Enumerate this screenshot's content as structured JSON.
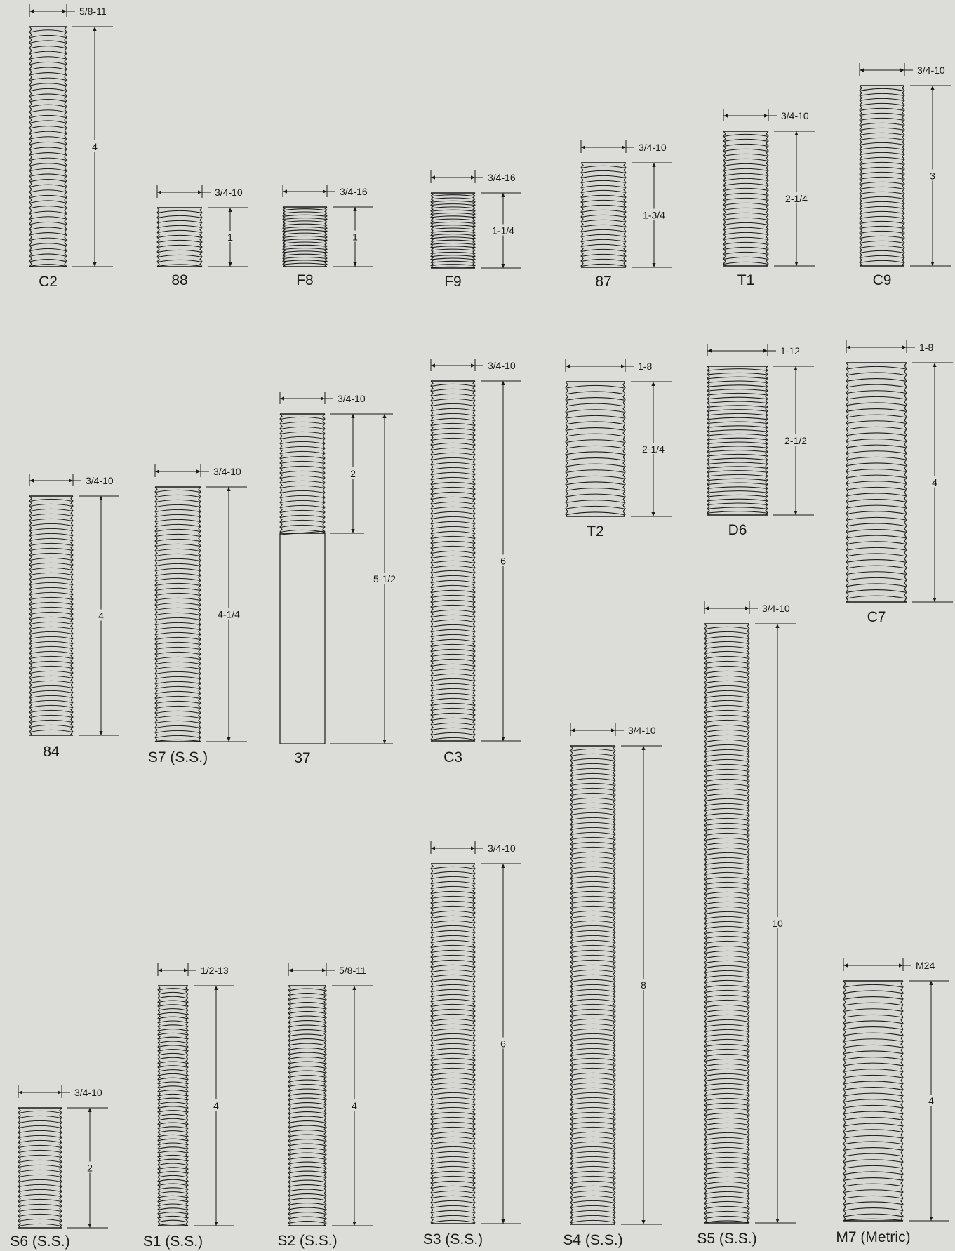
{
  "colors": {
    "background": "#dcdcd8",
    "line": "#1a1a1a",
    "thread_fill": "#d6d6d2"
  },
  "parts": [
    {
      "label": "C2",
      "thread_size": "5/8-11",
      "length": "4"
    },
    {
      "label": "88",
      "thread_size": "3/4-10",
      "length": "1"
    },
    {
      "label": "F8",
      "thread_size": "3/4-16",
      "length": "1"
    },
    {
      "label": "F9",
      "thread_size": "3/4-16",
      "length": "1-1/4"
    },
    {
      "label": "87",
      "thread_size": "3/4-10",
      "length": "1-3/4"
    },
    {
      "label": "T1",
      "thread_size": "3/4-10",
      "length": "2-1/4"
    },
    {
      "label": "C9",
      "thread_size": "3/4-10",
      "length": "3"
    },
    {
      "label": "84",
      "thread_size": "3/4-10",
      "length": "4"
    },
    {
      "label": "S7 (S.S.)",
      "thread_size": "3/4-10",
      "length": "4-1/4"
    },
    {
      "label": "37",
      "thread_size": "3/4-10",
      "length": "5-1/2",
      "thread_length": "2"
    },
    {
      "label": "C3",
      "thread_size": "3/4-10",
      "length": "6"
    },
    {
      "label": "T2",
      "thread_size": "1-8",
      "length": "2-1/4"
    },
    {
      "label": "D6",
      "thread_size": "1-12",
      "length": "2-1/2"
    },
    {
      "label": "C7",
      "thread_size": "1-8",
      "length": "4"
    },
    {
      "label": "S6 (S.S.)",
      "thread_size": "3/4-10",
      "length": "2"
    },
    {
      "label": "S1 (S.S.)",
      "thread_size": "1/2-13",
      "length": "4"
    },
    {
      "label": "S2 (S.S.)",
      "thread_size": "5/8-11",
      "length": "4"
    },
    {
      "label": "S3 (S.S.)",
      "thread_size": "3/4-10",
      "length": "6"
    },
    {
      "label": "S4 (S.S.)",
      "thread_size": "3/4-10",
      "length": "8"
    },
    {
      "label": "S5 (S.S.)",
      "thread_size": "3/4-10",
      "length": "10"
    },
    {
      "label": "M7 (Metric)",
      "thread_size": "M24",
      "length": "4"
    }
  ]
}
